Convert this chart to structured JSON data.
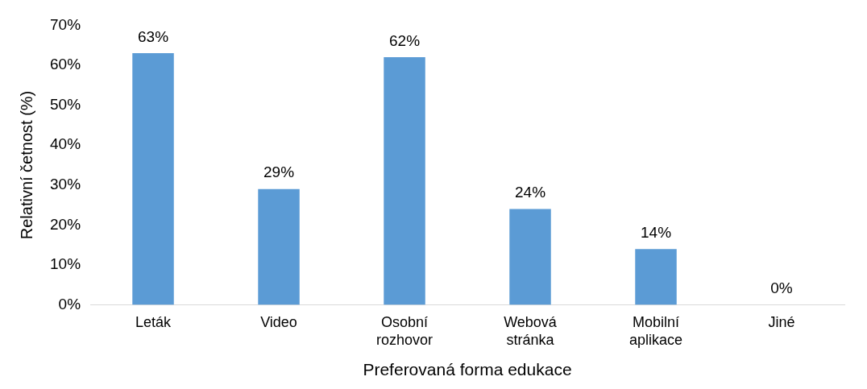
{
  "chart_data": {
    "type": "bar",
    "xlabel": "Preferovaná forma edukace",
    "ylabel": "Relativní četnost (%)",
    "categories": [
      "Leták",
      "Video",
      "Osobní rozhovor",
      "Webová stránka",
      "Mobilní aplikace",
      "Jiné"
    ],
    "values": [
      63,
      29,
      62,
      24,
      14,
      0
    ],
    "value_labels": [
      "63%",
      "29%",
      "62%",
      "24%",
      "14%",
      "0%"
    ],
    "color": "#5b9bd5",
    "ylim": [
      0,
      70
    ],
    "yticks": [
      {
        "value": 0,
        "label": "0%"
      },
      {
        "value": 10,
        "label": "10%"
      },
      {
        "value": 20,
        "label": "20%"
      },
      {
        "value": 30,
        "label": "30%"
      },
      {
        "value": 40,
        "label": "40%"
      },
      {
        "value": 50,
        "label": "50%"
      },
      {
        "value": 60,
        "label": "60%"
      },
      {
        "value": 70,
        "label": "70%"
      }
    ],
    "grid": false,
    "legend": false
  }
}
